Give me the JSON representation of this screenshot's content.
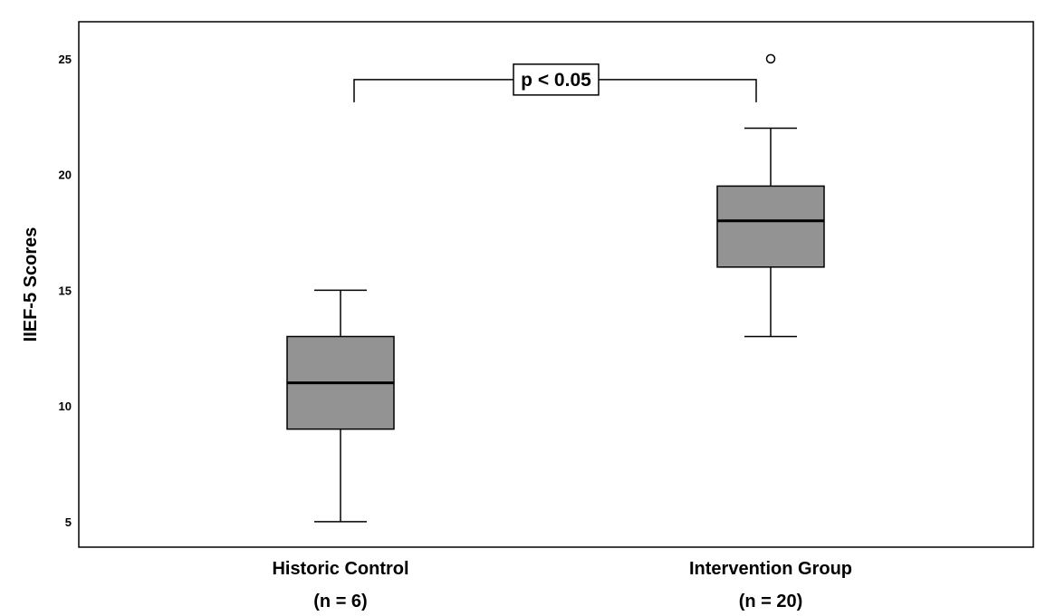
{
  "chart_data": {
    "type": "boxplot",
    "title": "",
    "xlabel": "",
    "ylabel": "IIEF-5 Scores",
    "ylim": [
      3.9,
      26.6
    ],
    "yticks": [
      5,
      10,
      15,
      20,
      25
    ],
    "grid": false,
    "categories": [
      "Historic Control",
      "Intervention Group"
    ],
    "sample_sizes": [
      "(n = 6)",
      "(n = 20)"
    ],
    "series": [
      {
        "category": "Historic Control",
        "whisker_low": 5,
        "q1": 9,
        "median": 11,
        "q3": 13,
        "whisker_high": 15,
        "outliers": []
      },
      {
        "category": "Intervention Group",
        "whisker_low": 13,
        "q1": 16,
        "median": 18,
        "q3": 19.5,
        "whisker_high": 22,
        "outliers": [
          25
        ]
      }
    ],
    "annotation": {
      "text": "p < 0.05",
      "from": "Historic Control",
      "to": "Intervention Group",
      "y": 24.1
    },
    "colors": {
      "box_fill": "#939393",
      "stroke": "#000000",
      "background": "#ffffff"
    }
  }
}
